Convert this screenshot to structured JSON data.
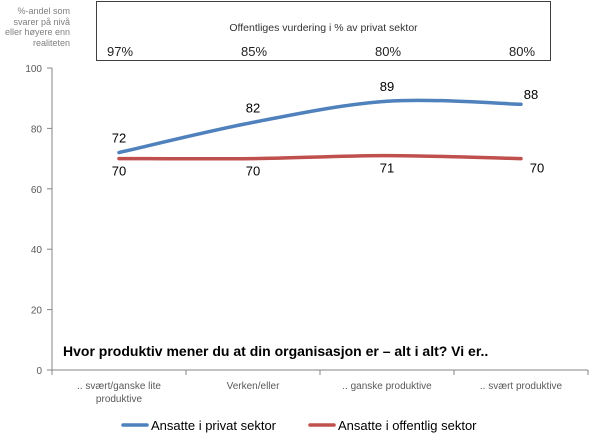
{
  "chart_data": {
    "type": "line",
    "categories": [
      ".. svært/ganske lite produktive",
      "Verken/eller",
      ".. ganske produktive",
      ".. svært produktive"
    ],
    "category_lines": [
      [
        ".. svært/ganske lite",
        "produktive"
      ],
      [
        "Verken/eller"
      ],
      [
        ".. ganske produktive"
      ],
      [
        ".. svært produktive"
      ]
    ],
    "series": [
      {
        "name": "Ansatte i privat sektor",
        "values": [
          72,
          82,
          89,
          88
        ],
        "color": "#4f81bd"
      },
      {
        "name": "Ansatte i offentlig sektor",
        "values": [
          70,
          70,
          71,
          70
        ],
        "color": "#c0504d"
      }
    ],
    "data_labels": [
      [
        "72",
        "82",
        "89",
        "88"
      ],
      [
        "70",
        "70",
        "71",
        "70"
      ]
    ],
    "ylim": [
      0,
      100
    ],
    "yticks": [
      "0",
      "20",
      "40",
      "60",
      "80",
      "100"
    ],
    "grid": false,
    "legend_position": "bottom",
    "ylabel": "%-andel som svarer på nivå eller høyere enn realiteten",
    "header": {
      "title": "Offentliges vurdering i % av privat sektor",
      "values": [
        "97%",
        "85%",
        "80%",
        "80%"
      ]
    },
    "annotation": "Hvor produktiv mener du at din organisasjon er – alt i alt?  Vi er.."
  }
}
